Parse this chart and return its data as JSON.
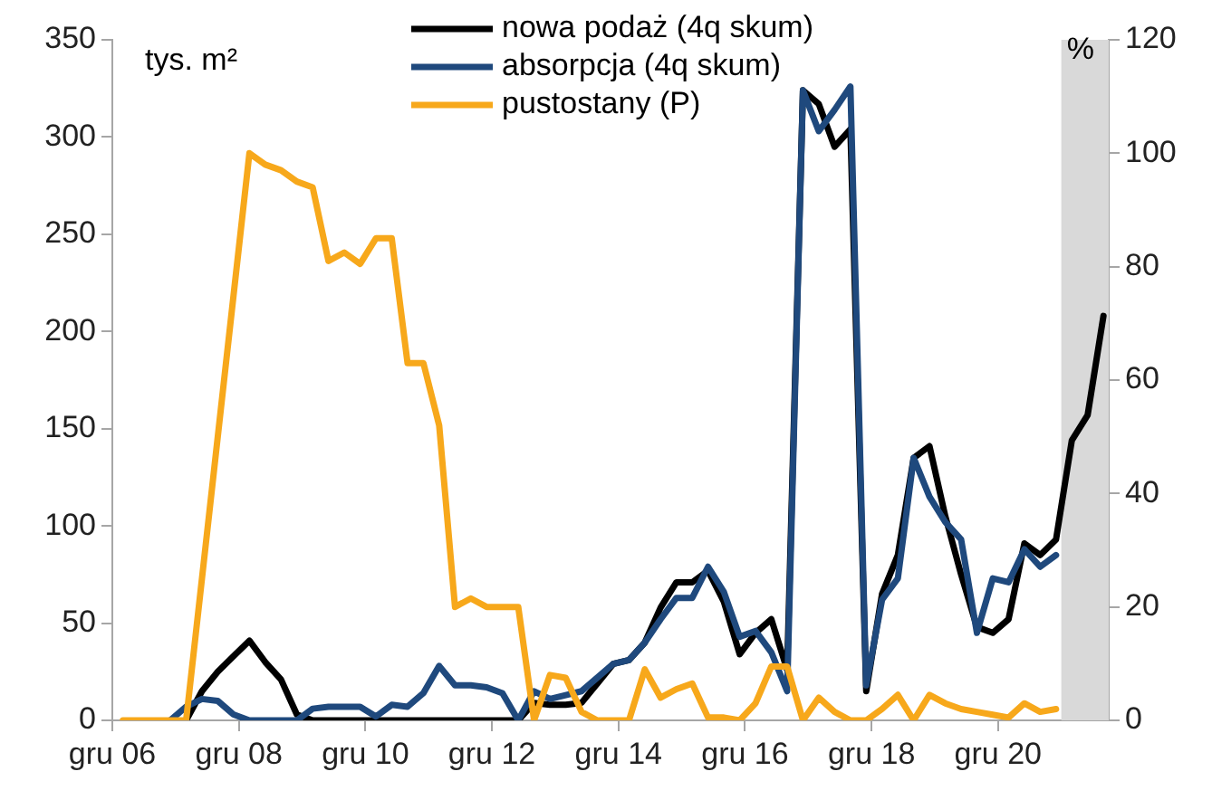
{
  "chart_data": {
    "type": "line",
    "ylabel": "tys. m²",
    "y2label": "%",
    "x": [
      "2007-02",
      "2007-05",
      "2007-08",
      "2007-11",
      "2008-02",
      "2008-05",
      "2008-08",
      "2008-11",
      "2009-02",
      "2009-05",
      "2009-08",
      "2009-11",
      "2010-02",
      "2010-05",
      "2010-08",
      "2010-11",
      "2011-02",
      "2011-05",
      "2011-08",
      "2011-11",
      "2012-02",
      "2012-05",
      "2012-08",
      "2012-11",
      "2013-02",
      "2013-05",
      "2013-08",
      "2013-11",
      "2014-02",
      "2014-05",
      "2014-08",
      "2014-11",
      "2015-02",
      "2015-05",
      "2015-08",
      "2015-11",
      "2016-02",
      "2016-05",
      "2016-08",
      "2016-11",
      "2017-02",
      "2017-05",
      "2017-08",
      "2017-11",
      "2018-02",
      "2018-05",
      "2018-08",
      "2018-11",
      "2019-02",
      "2019-05",
      "2019-08",
      "2019-11",
      "2020-02",
      "2020-05",
      "2020-08",
      "2020-11",
      "2021-02",
      "2021-05",
      "2021-08",
      "2021-11",
      "2022-02",
      "2022-05",
      "2022-08"
    ],
    "series": [
      {
        "name": "nowa podaż (4q skum)",
        "color": "#000000",
        "values": [
          null,
          null,
          null,
          null,
          0,
          15,
          25,
          33,
          41,
          30,
          21,
          3,
          0,
          0,
          0,
          0,
          0,
          0,
          0,
          0,
          0,
          0,
          0,
          0,
          0,
          0,
          9,
          8,
          8,
          9,
          19,
          29,
          31,
          40,
          58,
          71,
          71,
          77,
          61,
          34,
          45,
          52,
          26,
          324,
          317,
          295,
          304,
          15,
          65,
          85,
          135,
          141,
          105,
          75,
          48,
          45,
          52,
          91,
          85,
          93,
          144,
          157,
          208
        ]
      },
      {
        "name": "absorpcja (4q skum)",
        "color": "#1f497d",
        "values": [
          null,
          null,
          null,
          0,
          7,
          11,
          10,
          3,
          0,
          0,
          0,
          0,
          6,
          7,
          7,
          7,
          2,
          8,
          7,
          14,
          28,
          18,
          18,
          17,
          14,
          0,
          15,
          11,
          13,
          15,
          22,
          29,
          31,
          40,
          52,
          63,
          63,
          79,
          66,
          43,
          46,
          35,
          15,
          324,
          303,
          314,
          326,
          18,
          62,
          73,
          135,
          115,
          102,
          93,
          45,
          73,
          71,
          88,
          79,
          85,
          null,
          null,
          null
        ]
      },
      {
        "name": "pustostany (P)",
        "color": "#f7a81b",
        "axis": "y2",
        "values": [
          0,
          0,
          0,
          0,
          0,
          25,
          50,
          75,
          100,
          98,
          97,
          95,
          94,
          81,
          82.5,
          80.5,
          85,
          85,
          63,
          63,
          52,
          20,
          21.5,
          20,
          20,
          20,
          0,
          8,
          7.5,
          1.5,
          0,
          0,
          0,
          9,
          4,
          5.5,
          6.5,
          0.5,
          0.5,
          0,
          3,
          9.5,
          9.5,
          0,
          4,
          1.5,
          0,
          0,
          2,
          4.5,
          0,
          4.5,
          3,
          2,
          1.5,
          1,
          0.5,
          3,
          1.5,
          2,
          null,
          null,
          null
        ]
      }
    ],
    "xlim": [
      "2006-12",
      "2022-09"
    ],
    "xticks": [
      {
        "value": "2006-12",
        "label": "gru 06"
      },
      {
        "value": "2008-12",
        "label": "gru 08"
      },
      {
        "value": "2010-12",
        "label": "gru 10"
      },
      {
        "value": "2012-12",
        "label": "gru 12"
      },
      {
        "value": "2014-12",
        "label": "gru 14"
      },
      {
        "value": "2016-12",
        "label": "gru 16"
      },
      {
        "value": "2018-12",
        "label": "gru 18"
      },
      {
        "value": "2020-12",
        "label": "gru 20"
      }
    ],
    "ylim": [
      0,
      350
    ],
    "yticks": [
      0,
      50,
      100,
      150,
      200,
      250,
      300,
      350
    ],
    "y2lim": [
      0,
      120
    ],
    "y2ticks": [
      0,
      20,
      40,
      60,
      80,
      100,
      120
    ],
    "bands": [
      {
        "axis": "x",
        "from": "2021-12",
        "to": "2022-09",
        "color": "#d9d9d9"
      }
    ],
    "legend": "top",
    "grid": false,
    "line_style": "solid",
    "marker": "none"
  }
}
